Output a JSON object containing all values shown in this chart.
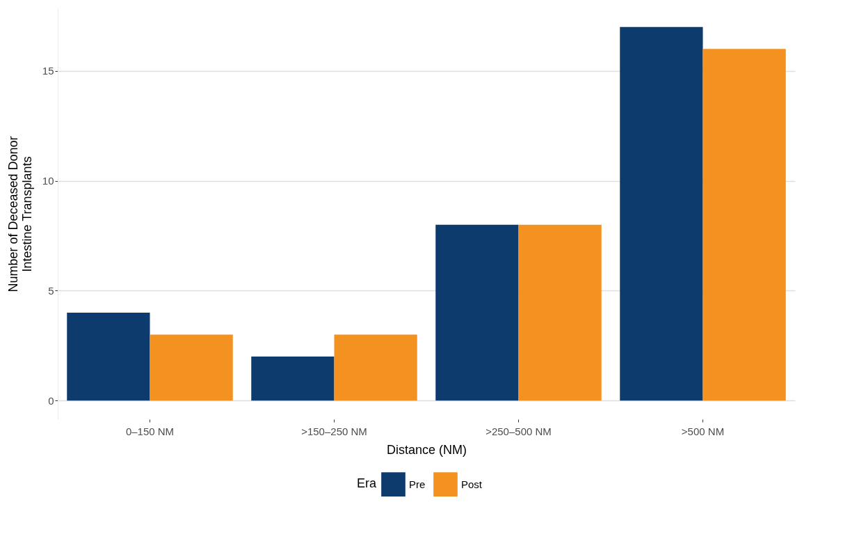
{
  "chart_data": {
    "type": "bar",
    "xlabel": "Distance (NM)",
    "ylabel": "Number of Deceased Donor Intestine Transplants",
    "legend_title": "Era",
    "categories": [
      "0–150 NM",
      ">150–250 NM",
      ">250–500 NM",
      ">500 NM"
    ],
    "series": [
      {
        "name": "Pre",
        "color": "#0d3b6e",
        "values": [
          4,
          2,
          8,
          17
        ]
      },
      {
        "name": "Post",
        "color": "#f39221",
        "values": [
          3,
          3,
          8,
          16
        ]
      }
    ],
    "ylim": [
      -0.85,
      17.85
    ],
    "yticks": [
      0,
      5,
      10,
      15
    ],
    "grid": "y",
    "legend": "bottom"
  }
}
